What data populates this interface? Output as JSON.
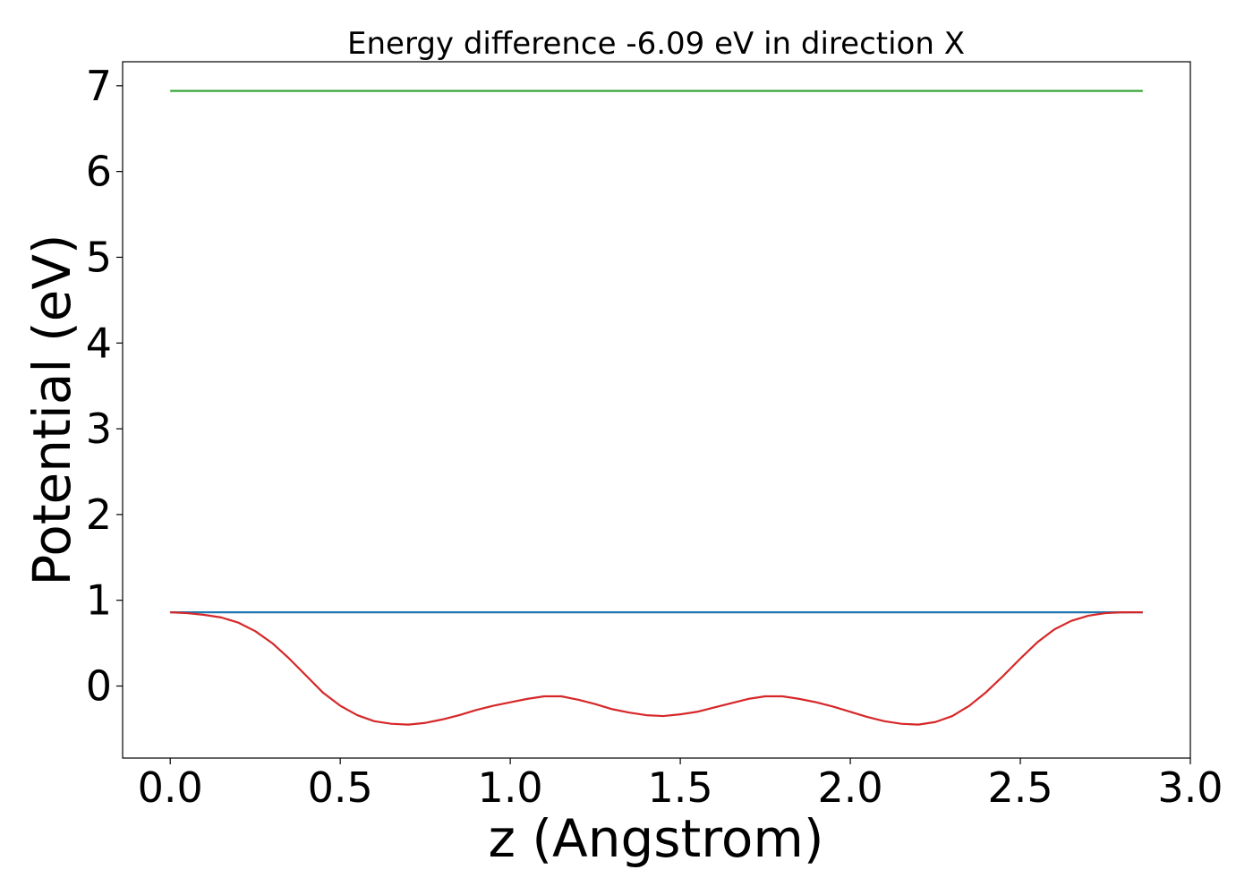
{
  "chart_data": {
    "type": "line",
    "title": "Energy difference -6.09 eV in direction X",
    "xlabel": "z (Angstrom)",
    "ylabel": "Potential (eV)",
    "xlim": [
      -0.14,
      3.0
    ],
    "ylim": [
      -0.84,
      7.28
    ],
    "xticks": [
      "0.0",
      "0.5",
      "1.0",
      "1.5",
      "2.0",
      "2.5",
      "3.0"
    ],
    "yticks": [
      "0",
      "1",
      "2",
      "3",
      "4",
      "5",
      "6",
      "7"
    ],
    "grid": false,
    "series": [
      {
        "color": "#1f77b4",
        "x": [
          0.0,
          2.86
        ],
        "y": [
          0.86,
          0.86
        ]
      },
      {
        "color": "#2ca02c",
        "x": [
          0.0,
          2.86
        ],
        "y": [
          6.94,
          6.94
        ]
      },
      {
        "color": "#d62728",
        "x": [
          0.0,
          0.05,
          0.1,
          0.15,
          0.2,
          0.25,
          0.3,
          0.35,
          0.4,
          0.45,
          0.5,
          0.55,
          0.6,
          0.65,
          0.7,
          0.75,
          0.8,
          0.85,
          0.9,
          0.95,
          1.0,
          1.05,
          1.1,
          1.15,
          1.2,
          1.25,
          1.3,
          1.35,
          1.4,
          1.45,
          1.5,
          1.55,
          1.6,
          1.65,
          1.7,
          1.75,
          1.8,
          1.85,
          1.9,
          1.95,
          2.0,
          2.05,
          2.1,
          2.15,
          2.2,
          2.25,
          2.3,
          2.35,
          2.4,
          2.45,
          2.5,
          2.55,
          2.6,
          2.65,
          2.7,
          2.75,
          2.8,
          2.86
        ],
        "y": [
          0.86,
          0.85,
          0.83,
          0.8,
          0.74,
          0.64,
          0.5,
          0.32,
          0.12,
          -0.08,
          -0.23,
          -0.34,
          -0.41,
          -0.44,
          -0.45,
          -0.43,
          -0.39,
          -0.34,
          -0.28,
          -0.23,
          -0.19,
          -0.15,
          -0.12,
          -0.12,
          -0.16,
          -0.21,
          -0.27,
          -0.31,
          -0.34,
          -0.35,
          -0.33,
          -0.3,
          -0.25,
          -0.2,
          -0.15,
          -0.12,
          -0.12,
          -0.15,
          -0.19,
          -0.24,
          -0.3,
          -0.36,
          -0.41,
          -0.44,
          -0.45,
          -0.42,
          -0.35,
          -0.23,
          -0.07,
          0.12,
          0.32,
          0.51,
          0.66,
          0.76,
          0.82,
          0.85,
          0.86,
          0.86
        ]
      }
    ]
  }
}
